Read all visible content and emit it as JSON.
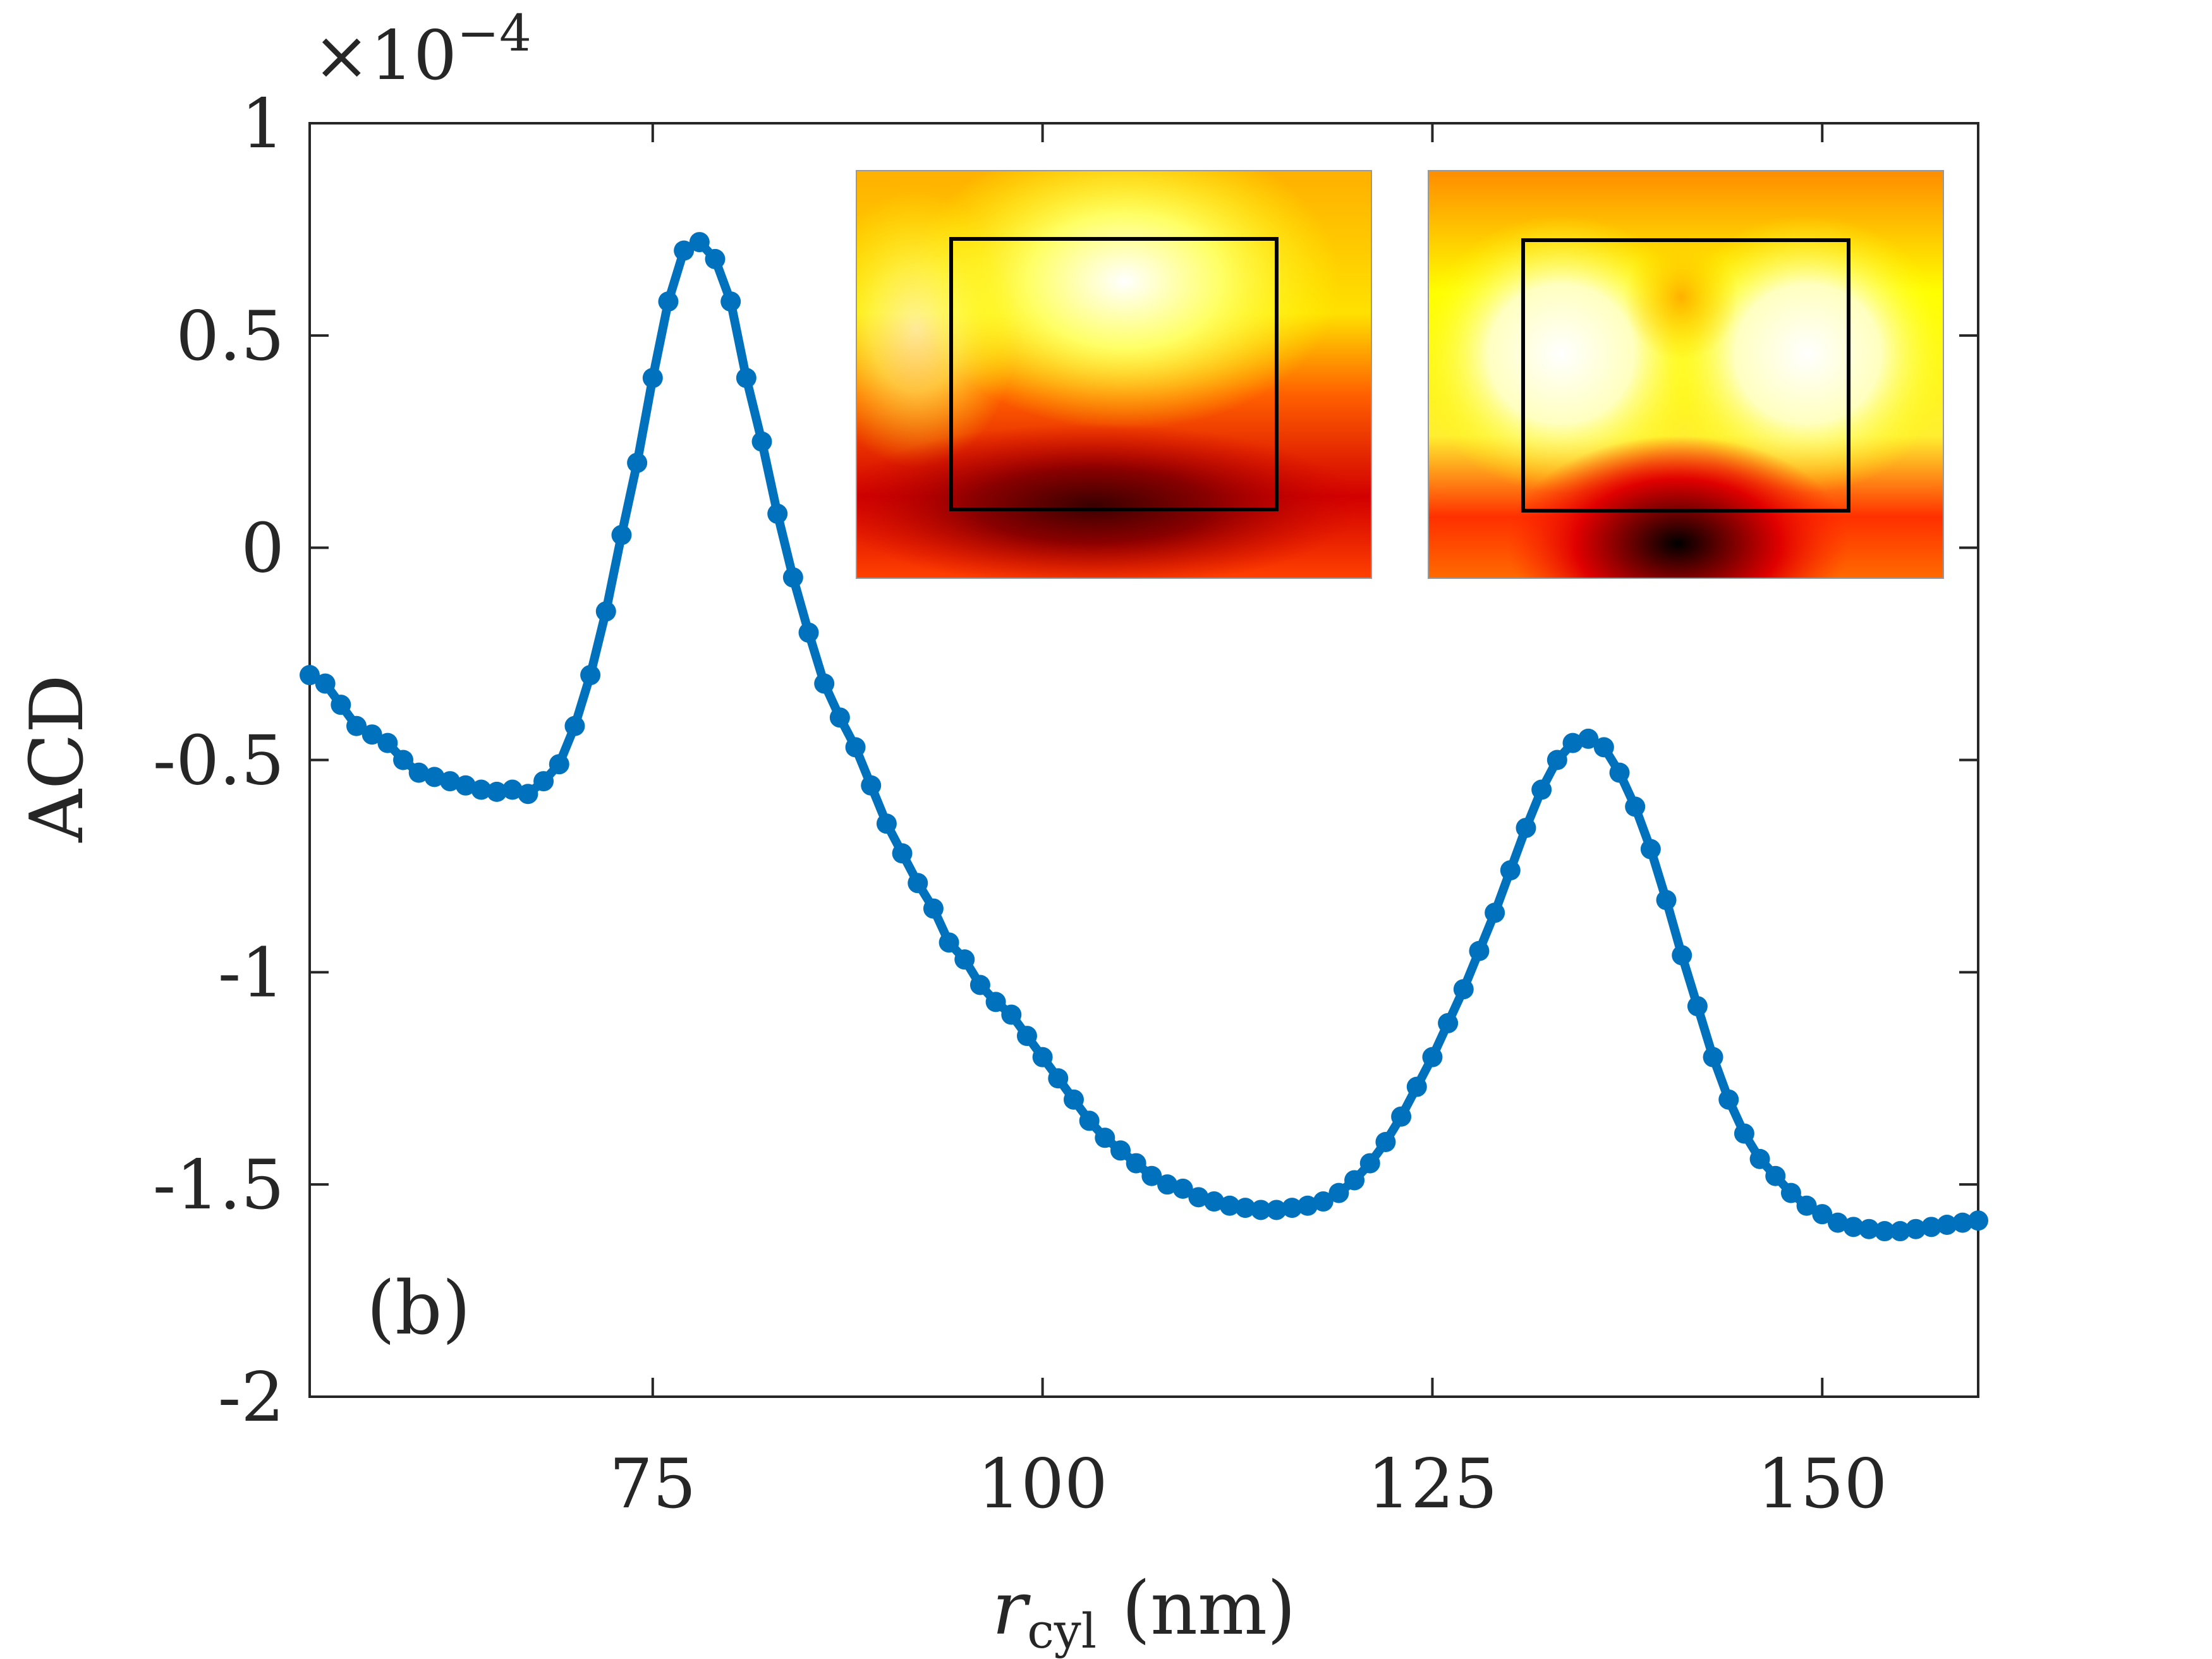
{
  "chart_data": {
    "type": "line",
    "title": "",
    "xlabel": "r",
    "xlabel_subscript": "cyl",
    "xlabel_unit": "(nm)",
    "ylabel": "ACD",
    "y_multiplier": "×10",
    "y_multiplier_exponent": "−4",
    "panel_label": "(b)",
    "xlim": [
      53,
      160
    ],
    "ylim": [
      -2,
      1
    ],
    "xticks": [
      75,
      100,
      125,
      150
    ],
    "xtick_labels": [
      "75",
      "100",
      "125",
      "150"
    ],
    "yticks": [
      1,
      0.5,
      0,
      -0.5,
      -1,
      -1.5,
      -2
    ],
    "ytick_labels": [
      "1",
      "0.5",
      "0",
      "-0.5",
      "-1",
      "-1.5",
      "-2"
    ],
    "grid": false,
    "line_color": "#0072BD",
    "insets": [
      {
        "name": "field-map-left",
        "frame": "inner-rectangle"
      },
      {
        "name": "field-map-right",
        "frame": "inner-rectangle"
      }
    ],
    "series": [
      {
        "x": [
          53,
          54,
          55,
          56,
          57,
          58,
          59,
          60,
          61,
          62,
          63,
          64,
          65,
          66,
          67,
          68,
          69,
          70,
          71,
          72,
          73,
          74,
          75,
          76,
          77,
          78,
          79,
          80,
          81,
          82,
          83,
          84,
          85,
          86,
          87,
          88,
          89,
          90,
          91,
          92,
          93,
          94,
          95,
          96,
          97,
          98,
          99,
          100,
          101,
          102,
          103,
          104,
          105,
          106,
          107,
          108,
          109,
          110,
          111,
          112,
          113,
          114,
          115,
          116,
          117,
          118,
          119,
          120,
          121,
          122,
          123,
          124,
          125,
          126,
          127,
          128,
          129,
          130,
          131,
          132,
          133,
          134,
          135,
          136,
          137,
          138,
          139,
          140,
          141,
          142,
          143,
          144,
          145,
          146,
          147,
          148,
          149,
          150,
          151,
          152,
          153,
          154,
          155,
          156,
          157,
          158,
          159,
          160
        ],
        "y": [
          -0.3,
          -0.32,
          -0.37,
          -0.42,
          -0.44,
          -0.46,
          -0.5,
          -0.53,
          -0.54,
          -0.55,
          -0.56,
          -0.57,
          -0.575,
          -0.57,
          -0.58,
          -0.55,
          -0.51,
          -0.42,
          -0.3,
          -0.15,
          0.03,
          0.2,
          0.4,
          0.58,
          0.7,
          0.72,
          0.68,
          0.58,
          0.4,
          0.25,
          0.08,
          -0.07,
          -0.2,
          -0.32,
          -0.4,
          -0.47,
          -0.56,
          -0.65,
          -0.72,
          -0.79,
          -0.85,
          -0.93,
          -0.97,
          -1.03,
          -1.07,
          -1.1,
          -1.15,
          -1.2,
          -1.25,
          -1.3,
          -1.35,
          -1.39,
          -1.42,
          -1.45,
          -1.48,
          -1.5,
          -1.51,
          -1.53,
          -1.54,
          -1.55,
          -1.555,
          -1.56,
          -1.56,
          -1.555,
          -1.55,
          -1.54,
          -1.52,
          -1.49,
          -1.45,
          -1.4,
          -1.34,
          -1.27,
          -1.2,
          -1.12,
          -1.04,
          -0.95,
          -0.86,
          -0.76,
          -0.66,
          -0.57,
          -0.5,
          -0.46,
          -0.45,
          -0.47,
          -0.53,
          -0.61,
          -0.71,
          -0.83,
          -0.96,
          -1.08,
          -1.2,
          -1.3,
          -1.38,
          -1.44,
          -1.48,
          -1.52,
          -1.55,
          -1.57,
          -1.59,
          -1.6,
          -1.605,
          -1.61,
          -1.61,
          -1.605,
          -1.6,
          -1.595,
          -1.59,
          -1.585
        ]
      }
    ]
  }
}
